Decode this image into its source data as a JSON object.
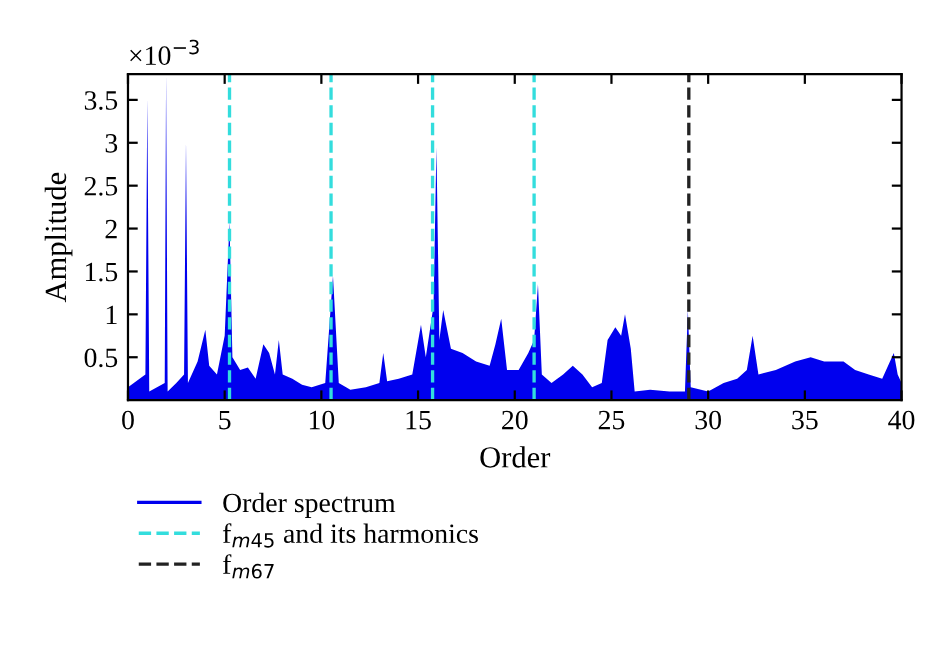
{
  "chart_data": {
    "type": "area",
    "xlabel": "Order",
    "ylabel": "Amplitude",
    "annotations": [
      "×10$^{−3}$"
    ],
    "xlim": [
      0,
      40
    ],
    "xticks": [
      0,
      5,
      10,
      15,
      20,
      25,
      30,
      35,
      40
    ],
    "ylim": [
      0,
      3.8
    ],
    "yticks": [
      0.5,
      1,
      1.5,
      2,
      2.5,
      3,
      3.5
    ],
    "legend": "bottom",
    "series": [
      {
        "name": "Order spectrum",
        "color": "#0000ee",
        "x": [
          0,
          0.3,
          0.6,
          0.9,
          1.0,
          1.1,
          1.5,
          1.9,
          1.97,
          2.05,
          2.5,
          2.9,
          3.0,
          3.1,
          3.6,
          4.0,
          4.2,
          4.6,
          5.0,
          5.25,
          5.4,
          5.8,
          6.2,
          6.6,
          7.0,
          7.3,
          7.6,
          7.8,
          8.0,
          8.5,
          9.0,
          9.5,
          10.2,
          10.6,
          10.9,
          11.5,
          12.3,
          13.0,
          13.2,
          13.4,
          14.0,
          14.7,
          15.15,
          15.4,
          15.8,
          15.95,
          16.1,
          16.3,
          16.7,
          17.3,
          18.0,
          18.7,
          19.0,
          19.3,
          19.6,
          20.2,
          20.7,
          21.0,
          21.2,
          21.4,
          21.9,
          22.5,
          23.0,
          23.5,
          24.0,
          24.5,
          24.8,
          25.2,
          25.5,
          25.7,
          26.0,
          26.2,
          27.0,
          28.0,
          28.8,
          28.95,
          29.1,
          30.0,
          30.8,
          31.5,
          32.0,
          32.3,
          32.6,
          33.5,
          34.5,
          35.3,
          36.0,
          37.0,
          37.6,
          38.3,
          39.0,
          39.6,
          39.8,
          40
        ],
        "values": [
          0.15,
          0.2,
          0.25,
          0.3,
          3.52,
          0.1,
          0.15,
          0.2,
          3.8,
          0.1,
          0.2,
          0.3,
          3.02,
          0.2,
          0.45,
          0.82,
          0.4,
          0.3,
          0.75,
          2.08,
          0.5,
          0.35,
          0.38,
          0.25,
          0.65,
          0.55,
          0.3,
          0.7,
          0.3,
          0.25,
          0.18,
          0.15,
          0.2,
          1.45,
          0.2,
          0.12,
          0.15,
          0.2,
          0.55,
          0.22,
          0.25,
          0.3,
          0.88,
          0.5,
          1.1,
          2.95,
          0.7,
          1.05,
          0.6,
          0.55,
          0.45,
          0.4,
          0.65,
          0.95,
          0.35,
          0.35,
          0.55,
          0.7,
          1.35,
          0.3,
          0.2,
          0.3,
          0.4,
          0.3,
          0.15,
          0.2,
          0.7,
          0.85,
          0.75,
          1.0,
          0.6,
          0.1,
          0.12,
          0.1,
          0.1,
          1.05,
          0.15,
          0.1,
          0.2,
          0.25,
          0.35,
          0.75,
          0.3,
          0.35,
          0.45,
          0.5,
          0.45,
          0.45,
          0.35,
          0.3,
          0.25,
          0.55,
          0.3,
          0.2
        ]
      }
    ],
    "ref_lines": [
      {
        "axis": "x",
        "value": 5.25,
        "label": "f$_{m45}$ and its harmonics",
        "color": "#33dddd",
        "line_style": "dashed"
      },
      {
        "axis": "x",
        "value": 10.5,
        "color": "#33dddd",
        "line_style": "dashed"
      },
      {
        "axis": "x",
        "value": 15.75,
        "color": "#33dddd",
        "line_style": "dashed"
      },
      {
        "axis": "x",
        "value": 21,
        "color": "#33dddd",
        "line_style": "dashed"
      },
      {
        "axis": "x",
        "value": 29,
        "label": "f$_{m67}$",
        "color": "#222222",
        "line_style": "dashed"
      }
    ]
  }
}
